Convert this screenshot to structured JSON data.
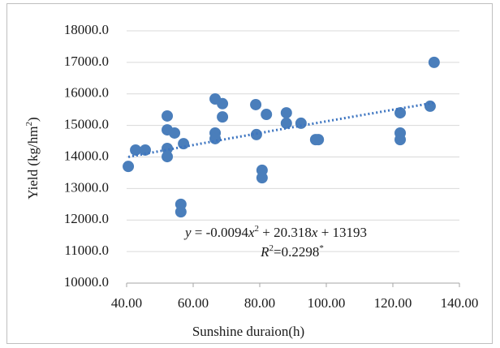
{
  "chart_data": {
    "type": "scatter",
    "x_label": "Sunshine duraion(h)",
    "y_label_parts": [
      "Yield (kg/hm",
      "2",
      ")"
    ],
    "series": [
      {
        "color": "#4a7ebb",
        "x": [
          40.5,
          42.7,
          45.6,
          52.2,
          52.2,
          52.2,
          52.2,
          54.4,
          57.1,
          56.3,
          56.3,
          66.6,
          66.6,
          66.6,
          68.8,
          68.8,
          78.8,
          79.0,
          80.7,
          80.7,
          82.0,
          88.0,
          88.0,
          92.4,
          96.8,
          97.6,
          122.2,
          122.2,
          122.2,
          131.2,
          132.4
        ],
        "values": [
          13700,
          14220,
          14220,
          15300,
          14860,
          14270,
          14010,
          14760,
          14420,
          12500,
          12260,
          15840,
          14760,
          14580,
          15690,
          15270,
          15660,
          14710,
          13580,
          13340,
          15350,
          15400,
          15070,
          15070,
          14550,
          14550,
          15400,
          14760,
          14550,
          15610,
          17000
        ]
      }
    ],
    "trendline": {
      "color": "#3c74c0",
      "coefficients": [
        -0.0094,
        20.318,
        13193
      ],
      "equation_parts": [
        "y",
        " = -0.0094",
        "x",
        "2",
        " + 20.318",
        "x",
        " + 13193"
      ],
      "r2_parts": [
        "R",
        "2",
        "=0.2298",
        "*"
      ]
    },
    "xlim": [
      40,
      140
    ],
    "xticks": [
      {
        "value": 40,
        "label": "40.00"
      },
      {
        "value": 60,
        "label": "60.00"
      },
      {
        "value": 80,
        "label": "80.00"
      },
      {
        "value": 100,
        "label": "100.00"
      },
      {
        "value": 120,
        "label": "120.00"
      },
      {
        "value": 140,
        "label": "140.00"
      }
    ],
    "ylim": [
      10000,
      18000
    ],
    "yticks": [
      {
        "value": 10000,
        "label": "10000.0"
      },
      {
        "value": 11000,
        "label": "11000.0"
      },
      {
        "value": 12000,
        "label": "12000.0"
      },
      {
        "value": 13000,
        "label": "13000.0"
      },
      {
        "value": 14000,
        "label": "14000.0"
      },
      {
        "value": 15000,
        "label": "15000.0"
      },
      {
        "value": 16000,
        "label": "16000.0"
      },
      {
        "value": 17000,
        "label": "17000.0"
      },
      {
        "value": 18000,
        "label": "18000.0"
      }
    ],
    "grid": true
  }
}
